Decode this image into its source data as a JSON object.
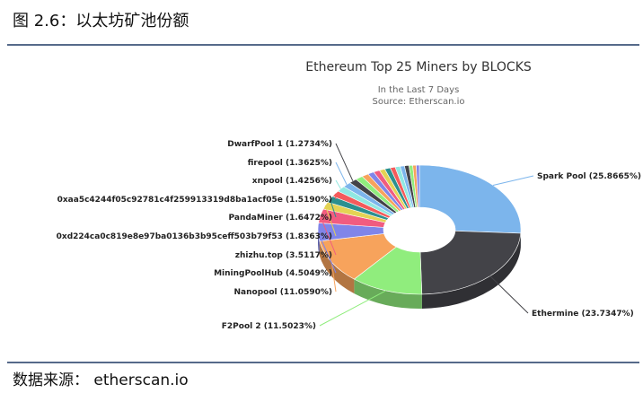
{
  "header": {
    "title": "图 2.6：以太坊矿池份额"
  },
  "chart_data": {
    "type": "pie",
    "donut": true,
    "title": "Ethereum Top 25 Miners by BLOCKS",
    "subtitle": "In the Last 7 Days",
    "source": "Source: Etherscan.io",
    "categories": [
      "Spark Pool",
      "Ethermine",
      "F2Pool 2",
      "Nanopool",
      "MiningPoolHub",
      "zhizhu.top",
      "0xd224ca0c819e8e97ba0136b3b95ceff503b79f53",
      "PandaMiner",
      "0xaa5c4244f05c92781c4f259913319d8ba1acf05e",
      "xnpool",
      "firepool",
      "DwarfPool 1",
      null,
      null,
      null,
      null,
      null,
      null,
      null,
      null,
      null,
      null,
      null,
      null,
      null
    ],
    "values": [
      25.8665,
      23.7347,
      11.5023,
      11.059,
      4.5049,
      3.5117,
      1.8363,
      1.6472,
      1.519,
      1.4256,
      1.3625,
      1.2734,
      1.2,
      1.1,
      1.0,
      1.0,
      0.9,
      0.9,
      0.8,
      0.8,
      0.7,
      0.7,
      0.6,
      0.55,
      0.5
    ],
    "value_labels": [
      "(25.8665%)",
      "(23.7347%)",
      "(11.5023%)",
      "(11.0590%)",
      "(4.5049%)",
      "(3.5117%)",
      "(1.8363%)",
      "(1.6472%)",
      "(1.5190%)",
      "(1.4256%)",
      "(1.3625%)",
      "(1.2734%)",
      null,
      null,
      null,
      null,
      null,
      null,
      null,
      null,
      null,
      null,
      null,
      null,
      null
    ],
    "colors": [
      "#7cb5ec",
      "#434348",
      "#90ed7d",
      "#f7a35c",
      "#8085e9",
      "#f15c80",
      "#e4d354",
      "#2b908f",
      "#f45b5b",
      "#91e8e1",
      "#7cb5ec",
      "#434348",
      "#90ed7d",
      "#f7a35c",
      "#8085e9",
      "#f15c80",
      "#e4d354",
      "#2b908f",
      "#f45b5b",
      "#91e8e1",
      "#7cb5ec",
      "#434348",
      "#90ed7d",
      "#f7a35c",
      "#8085e9"
    ]
  },
  "footer": {
    "source": "数据来源：  etherscan.io"
  }
}
